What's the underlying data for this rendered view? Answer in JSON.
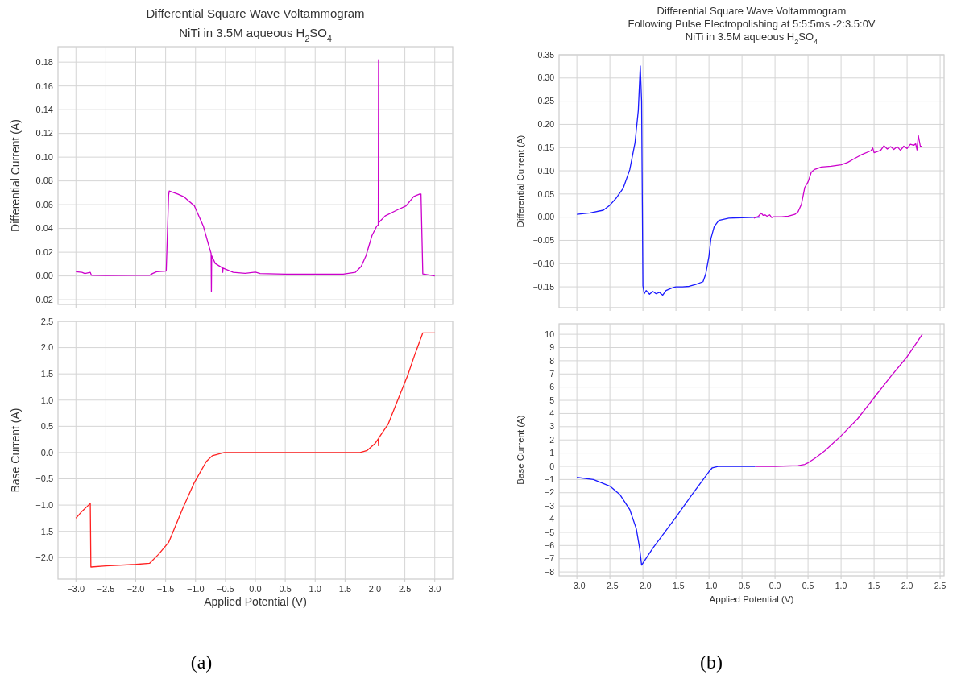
{
  "chart_data": [
    {
      "type": "line",
      "title": "Differential Square Wave Voltammogram",
      "subtitle": "NiTi in 3.5M aqueous H$_{2}$SO$_{4}$",
      "ylabel": "Differential Current (A)",
      "xlim": [
        -3.3,
        3.3
      ],
      "ylim": [
        -0.024,
        0.193
      ],
      "xticks": [
        {
          "value": -3,
          "label": null
        },
        {
          "value": -2.5,
          "label": null
        },
        {
          "value": -2,
          "label": null
        },
        {
          "value": -1.5,
          "label": null
        },
        {
          "value": -1,
          "label": null
        },
        {
          "value": -0.5,
          "label": null
        },
        {
          "value": 0,
          "label": null
        },
        {
          "value": 0.5,
          "label": null
        },
        {
          "value": 1,
          "label": null
        },
        {
          "value": 1.5,
          "label": null
        },
        {
          "value": 2,
          "label": null
        },
        {
          "value": 2.5,
          "label": null
        },
        {
          "value": 3,
          "label": null
        }
      ],
      "yticks": [
        {
          "value": -0.02,
          "label": "−0.02"
        },
        {
          "value": 0,
          "label": "0.00"
        },
        {
          "value": 0.02,
          "label": "0.02"
        },
        {
          "value": 0.04,
          "label": "0.04"
        },
        {
          "value": 0.06,
          "label": "0.06"
        },
        {
          "value": 0.08,
          "label": "0.08"
        },
        {
          "value": 0.1,
          "label": "0.10"
        },
        {
          "value": 0.12,
          "label": "0.12"
        },
        {
          "value": 0.14,
          "label": "0.14"
        },
        {
          "value": 0.16,
          "label": "0.16"
        },
        {
          "value": 0.18,
          "label": "0.18"
        }
      ],
      "grid": true,
      "tick_labels": "y",
      "series": [
        {
          "color": "#cc00cc",
          "x": [
            -3.0,
            -2.9,
            -2.85,
            -2.76,
            -2.74,
            -2.5,
            -2.0,
            -1.77,
            -1.72,
            -1.65,
            -1.5,
            -1.49,
            -1.45,
            -1.44,
            -1.3,
            -1.2,
            -1.02,
            -0.87,
            -0.77,
            -0.74,
            -0.735,
            -0.73,
            -0.67,
            -0.55,
            -0.545,
            -0.54,
            -0.37,
            -0.17,
            0.0,
            0.08,
            0.5,
            1.0,
            1.47,
            1.67,
            1.77,
            1.85,
            1.95,
            2.03,
            2.055,
            2.06,
            2.065,
            2.17,
            2.37,
            2.52,
            2.65,
            2.75,
            2.77,
            2.8,
            3.0
          ],
          "values": [
            0.0035,
            0.003,
            0.002,
            0.003,
            0.0005,
            0.0003,
            0.0005,
            0.0005,
            0.002,
            0.0035,
            0.004,
            0.0045,
            0.068,
            0.0715,
            0.069,
            0.0668,
            0.059,
            0.042,
            0.024,
            0.019,
            -0.013,
            0.017,
            0.0105,
            0.0068,
            0.003,
            0.0066,
            0.003,
            0.0022,
            0.0032,
            0.002,
            0.0015,
            0.0015,
            0.0015,
            0.003,
            0.008,
            0.017,
            0.034,
            0.042,
            0.043,
            0.182,
            0.045,
            0.0505,
            0.0555,
            0.059,
            0.067,
            0.069,
            0.069,
            0.0017,
            0.0
          ]
        }
      ]
    },
    {
      "type": "line",
      "xlabel": "Applied Potential (V)",
      "ylabel": "Base Current (A)",
      "xlim": [
        -3.3,
        3.3
      ],
      "ylim": [
        -2.41,
        2.5
      ],
      "xticks": [
        {
          "value": -3,
          "label": "−3.0"
        },
        {
          "value": -2.5,
          "label": "−2.5"
        },
        {
          "value": -2,
          "label": "−2.0"
        },
        {
          "value": -1.5,
          "label": "−1.5"
        },
        {
          "value": -1,
          "label": "−1.0"
        },
        {
          "value": -0.5,
          "label": "−0.5"
        },
        {
          "value": 0,
          "label": "0.0"
        },
        {
          "value": 0.5,
          "label": "0.5"
        },
        {
          "value": 1,
          "label": "1.0"
        },
        {
          "value": 1.5,
          "label": "1.5"
        },
        {
          "value": 2,
          "label": "2.0"
        },
        {
          "value": 2.5,
          "label": "2.5"
        },
        {
          "value": 3,
          "label": "3.0"
        }
      ],
      "yticks": [
        {
          "value": -2,
          "label": "−2.0"
        },
        {
          "value": -1.5,
          "label": "−1.5"
        },
        {
          "value": -1,
          "label": "−1.0"
        },
        {
          "value": -0.5,
          "label": "−0.5"
        },
        {
          "value": 0,
          "label": "0.0"
        },
        {
          "value": 0.5,
          "label": "0.5"
        },
        {
          "value": 1,
          "label": "1.0"
        },
        {
          "value": 1.5,
          "label": "1.5"
        },
        {
          "value": 2,
          "label": "2.0"
        },
        {
          "value": 2.5,
          "label": "2.5"
        }
      ],
      "grid": true,
      "annotations": [
        "(a)"
      ],
      "series": [
        {
          "color": "#ff2020",
          "x": [
            -3.0,
            -2.9,
            -2.76,
            -2.75,
            -2.5,
            -2.0,
            -1.77,
            -1.62,
            -1.45,
            -1.22,
            -1.02,
            -0.82,
            -0.72,
            -0.52,
            0.0,
            1.0,
            1.75,
            1.87,
            2.0,
            2.055,
            2.06,
            2.065,
            2.22,
            2.37,
            2.55,
            2.67,
            2.8,
            3.0
          ],
          "values": [
            -1.25,
            -1.12,
            -0.97,
            -2.18,
            -2.16,
            -2.13,
            -2.11,
            -1.94,
            -1.71,
            -1.08,
            -0.57,
            -0.17,
            -0.06,
            0.0,
            0.0,
            0.0,
            0.0,
            0.04,
            0.17,
            0.26,
            0.13,
            0.28,
            0.54,
            0.97,
            1.48,
            1.88,
            2.28,
            2.28
          ]
        }
      ]
    },
    {
      "type": "line",
      "title": "Differential Square Wave Voltammogram",
      "subtitle": "Following Pulse Electropolishing at 5:5:5ms -2:3.5:0V\nNiTi in 3.5M aqueous H$_{2}$SO$_{4}$",
      "ylabel": "Differential Current (A)",
      "xlim": [
        -3.27,
        2.56
      ],
      "ylim": [
        -0.195,
        0.35
      ],
      "xticks": [
        {
          "value": -3,
          "label": null
        },
        {
          "value": -2.5,
          "label": null
        },
        {
          "value": -2,
          "label": null
        },
        {
          "value": -1.5,
          "label": null
        },
        {
          "value": -1,
          "label": null
        },
        {
          "value": -0.5,
          "label": null
        },
        {
          "value": 0,
          "label": null
        },
        {
          "value": 0.5,
          "label": null
        },
        {
          "value": 1,
          "label": null
        },
        {
          "value": 1.5,
          "label": null
        },
        {
          "value": 2,
          "label": null
        },
        {
          "value": 2.5,
          "label": null
        }
      ],
      "yticks": [
        {
          "value": -0.15,
          "label": "−0.15"
        },
        {
          "value": -0.1,
          "label": "−0.10"
        },
        {
          "value": -0.05,
          "label": "−0.05"
        },
        {
          "value": 0,
          "label": "0.00"
        },
        {
          "value": 0.05,
          "label": "0.05"
        },
        {
          "value": 0.1,
          "label": "0.10"
        },
        {
          "value": 0.15,
          "label": "0.15"
        },
        {
          "value": 0.2,
          "label": "0.20"
        },
        {
          "value": 0.25,
          "label": "0.25"
        },
        {
          "value": 0.3,
          "label": "0.30"
        },
        {
          "value": 0.35,
          "label": "0.35"
        }
      ],
      "grid": true,
      "tick_labels": "y",
      "series": [
        {
          "color": "#1a1aff",
          "x": [
            -3.0,
            -2.8,
            -2.6,
            -2.5,
            -2.4,
            -2.3,
            -2.2,
            -2.12,
            -2.07,
            -2.04,
            -2.02,
            -2.0,
            -1.98,
            -1.95,
            -1.9,
            -1.85,
            -1.8,
            -1.75,
            -1.7,
            -1.65,
            -1.6,
            -1.55,
            -1.5,
            -1.4,
            -1.3,
            -1.2,
            -1.09,
            -1.05,
            -1.0,
            -0.97,
            -0.92,
            -0.85,
            -0.7,
            -0.5,
            -0.22
          ],
          "values": [
            0.006,
            0.009,
            0.015,
            0.026,
            0.042,
            0.062,
            0.102,
            0.16,
            0.23,
            0.326,
            0.25,
            -0.148,
            -0.165,
            -0.158,
            -0.166,
            -0.16,
            -0.165,
            -0.162,
            -0.168,
            -0.158,
            -0.155,
            -0.152,
            -0.15,
            -0.15,
            -0.149,
            -0.145,
            -0.139,
            -0.123,
            -0.084,
            -0.046,
            -0.02,
            -0.007,
            -0.002,
            -0.001,
            0.0
          ]
        },
        {
          "color": "#cc00cc",
          "x": [
            -0.32,
            -0.25,
            -0.21,
            -0.18,
            -0.15,
            -0.12,
            -0.08,
            -0.05,
            -0.02,
            0.0,
            0.1,
            0.2,
            0.3,
            0.35,
            0.4,
            0.45,
            0.5,
            0.55,
            0.6,
            0.7,
            0.85,
            1.0,
            1.1,
            1.2,
            1.3,
            1.45,
            1.48,
            1.5,
            1.6,
            1.65,
            1.7,
            1.75,
            1.8,
            1.85,
            1.9,
            1.95,
            2.0,
            2.05,
            2.1,
            2.13,
            2.15,
            2.17,
            2.2,
            2.23
          ],
          "values": [
            -0.002,
            0.002,
            0.009,
            0.004,
            0.005,
            0.002,
            0.005,
            -0.001,
            0.001,
            0.001,
            0.001,
            0.002,
            0.006,
            0.012,
            0.028,
            0.064,
            0.076,
            0.097,
            0.103,
            0.108,
            0.11,
            0.113,
            0.118,
            0.126,
            0.134,
            0.143,
            0.149,
            0.139,
            0.144,
            0.154,
            0.147,
            0.152,
            0.146,
            0.152,
            0.144,
            0.153,
            0.148,
            0.157,
            0.155,
            0.158,
            0.145,
            0.176,
            0.153,
            0.152
          ]
        }
      ]
    },
    {
      "type": "line",
      "xlabel": "Applied Potential (V)",
      "ylabel": "Base Current (A)",
      "xlim": [
        -3.27,
        2.56
      ],
      "ylim": [
        -8.3,
        10.8
      ],
      "xticks": [
        {
          "value": -3,
          "label": "−3.0"
        },
        {
          "value": -2.5,
          "label": "−2.5"
        },
        {
          "value": -2,
          "label": "−2.0"
        },
        {
          "value": -1.5,
          "label": "−1.5"
        },
        {
          "value": -1,
          "label": "−1.0"
        },
        {
          "value": -0.5,
          "label": "−0.5"
        },
        {
          "value": 0,
          "label": "0.0"
        },
        {
          "value": 0.5,
          "label": "0.5"
        },
        {
          "value": 1,
          "label": "1.0"
        },
        {
          "value": 1.5,
          "label": "1.5"
        },
        {
          "value": 2,
          "label": "2.0"
        },
        {
          "value": 2.5,
          "label": "2.5"
        }
      ],
      "yticks": [
        {
          "value": -8,
          "label": "−8"
        },
        {
          "value": -7,
          "label": "−7"
        },
        {
          "value": -6,
          "label": "−6"
        },
        {
          "value": -5,
          "label": "−5"
        },
        {
          "value": -4,
          "label": "−4"
        },
        {
          "value": -3,
          "label": "−3"
        },
        {
          "value": -2,
          "label": "−2"
        },
        {
          "value": -1,
          "label": "−1"
        },
        0,
        1,
        2,
        3,
        4,
        5,
        6,
        7,
        8,
        9,
        10
      ],
      "grid": true,
      "annotations": [
        "(b)"
      ],
      "series": [
        {
          "color": "#1a1aff",
          "x": [
            -3.0,
            -2.75,
            -2.5,
            -2.35,
            -2.2,
            -2.1,
            -2.05,
            -2.02,
            -1.85,
            -1.5,
            -1.25,
            -1.0,
            -0.95,
            -0.85,
            -0.5,
            -0.3
          ],
          "values": [
            -0.84,
            -1.0,
            -1.5,
            -2.13,
            -3.27,
            -4.74,
            -6.2,
            -7.48,
            -6.2,
            -3.85,
            -2.1,
            -0.4,
            -0.11,
            0.0,
            0.0,
            0.0
          ]
        },
        {
          "color": "#cc00cc",
          "x": [
            -0.3,
            0.0,
            0.35,
            0.45,
            0.5,
            0.6,
            0.75,
            1.0,
            1.25,
            1.5,
            1.75,
            2.0,
            2.23
          ],
          "values": [
            0.0,
            0.0,
            0.05,
            0.15,
            0.27,
            0.59,
            1.16,
            2.31,
            3.6,
            5.2,
            6.8,
            8.3,
            10.0
          ]
        }
      ]
    }
  ]
}
